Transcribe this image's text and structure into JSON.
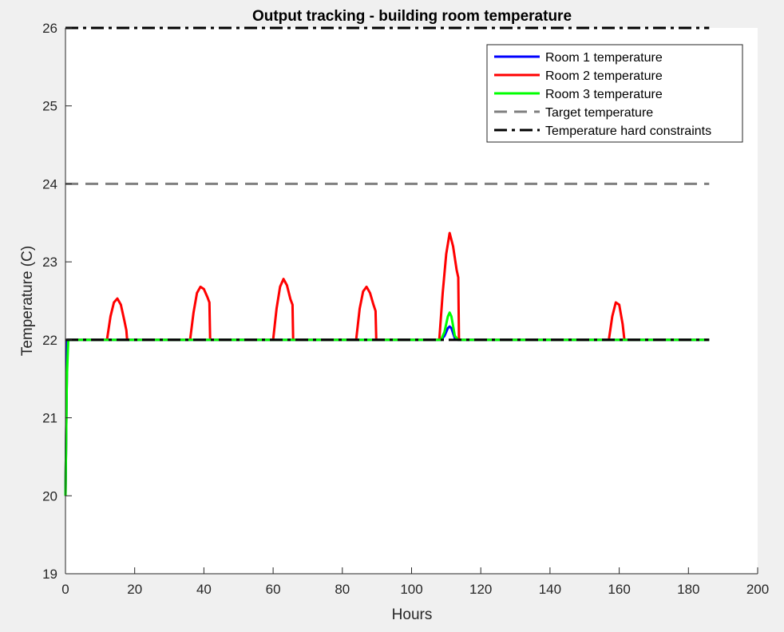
{
  "chart_data": {
    "type": "line",
    "title": "Output tracking - building room temperature",
    "xlabel": "Hours",
    "ylabel": "Temperature (C)",
    "xlim": [
      0,
      200
    ],
    "ylim": [
      19,
      26
    ],
    "xticks": [
      "0",
      "20",
      "40",
      "60",
      "80",
      "100",
      "120",
      "140",
      "160",
      "180",
      "200"
    ],
    "yticks": [
      "19",
      "20",
      "21",
      "22",
      "23",
      "24",
      "25",
      "26"
    ],
    "grid": false,
    "legend_position": "top-right",
    "series": [
      {
        "name": "Room 1 temperature",
        "color": "#0000ff",
        "style": "solid",
        "x": [
          0,
          0.5,
          108.5,
          109.5,
          110.5,
          111,
          111.5,
          112.5,
          113.5,
          186
        ],
        "y": [
          20,
          22,
          22,
          22.05,
          22.15,
          22.17,
          22.15,
          22.02,
          22,
          22
        ]
      },
      {
        "name": "Room 2 temperature",
        "color": "#ff0000",
        "style": "solid",
        "x": [
          0,
          0.5,
          12,
          13,
          14,
          15,
          16,
          17,
          17.6,
          17.8,
          36,
          37,
          38,
          39,
          40,
          41,
          41.6,
          41.8,
          60,
          61,
          62,
          63,
          64,
          65,
          65.6,
          65.8,
          84,
          85,
          86,
          87,
          88,
          89,
          89.6,
          89.8,
          108,
          109,
          110,
          111,
          112,
          113,
          113.5,
          113.7,
          157,
          158,
          159,
          160,
          161,
          161.5,
          186
        ],
        "y": [
          20,
          22,
          22,
          22.3,
          22.48,
          22.53,
          22.45,
          22.25,
          22.12,
          22,
          22,
          22.35,
          22.6,
          22.68,
          22.65,
          22.55,
          22.48,
          22,
          22,
          22.4,
          22.68,
          22.78,
          22.7,
          22.52,
          22.45,
          22,
          22,
          22.4,
          22.62,
          22.68,
          22.6,
          22.45,
          22.37,
          22,
          22,
          22.6,
          23.1,
          23.37,
          23.2,
          22.9,
          22.8,
          22,
          22,
          22.3,
          22.48,
          22.45,
          22.2,
          22,
          22
        ]
      },
      {
        "name": "Room 3 temperature",
        "color": "#00ff00",
        "style": "solid",
        "x": [
          0,
          0.4,
          0.8,
          108.5,
          109.5,
          110.5,
          111,
          111.5,
          112.5,
          113.5,
          186
        ],
        "y": [
          20,
          21.5,
          22,
          22,
          22.1,
          22.3,
          22.35,
          22.3,
          22.05,
          22,
          22
        ]
      },
      {
        "name": "Target temperature",
        "color": "#808080",
        "style": "dashed",
        "x": [
          0,
          186
        ],
        "y": [
          24,
          24
        ]
      },
      {
        "name": "Temperature hard constraints",
        "color": "#000000",
        "style": "dashdot",
        "x": [
          0,
          186
        ],
        "y": [
          26,
          26
        ],
        "extra": {
          "x": [
            0,
            186
          ],
          "y": [
            22,
            22
          ]
        }
      }
    ]
  }
}
